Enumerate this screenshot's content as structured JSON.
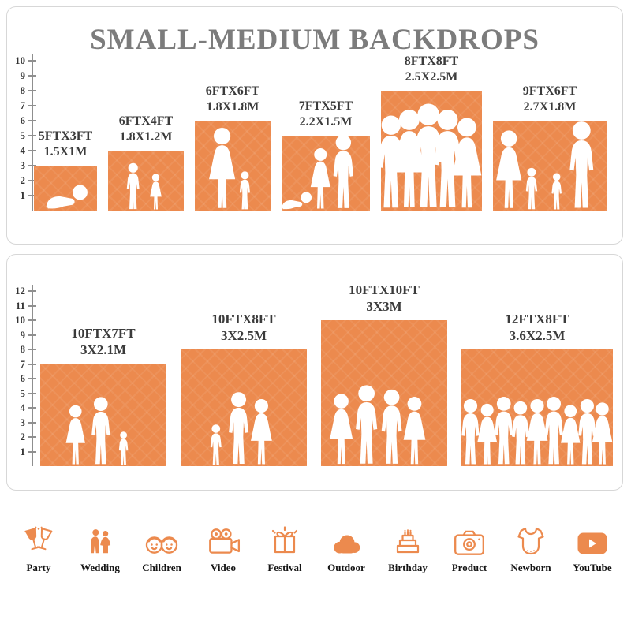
{
  "title": "SMALL-MEDIUM BACKDROPS",
  "accent_color": "#EC8A4E",
  "chart_data": [
    {
      "type": "bar",
      "name": "small-medium-backdrops",
      "unit": "ft",
      "ruler_max": 10,
      "bars": [
        {
          "label1": "5FTX3FT",
          "label2": "1.5X1M",
          "width_ft": 5,
          "height_ft": 3,
          "figures": "crawling-baby"
        },
        {
          "label1": "6FTX4FT",
          "label2": "1.8X1.2M",
          "width_ft": 6,
          "height_ft": 4,
          "figures": "two-children"
        },
        {
          "label1": "6FTX6FT",
          "label2": "1.8X1.8M",
          "width_ft": 6,
          "height_ft": 6,
          "figures": "mother-and-child"
        },
        {
          "label1": "7FTX5FT",
          "label2": "2.2X1.5M",
          "width_ft": 7,
          "height_ft": 5,
          "figures": "family-of-three"
        },
        {
          "label1": "8FTX8FT",
          "label2": "2.5X2.5M",
          "width_ft": 8,
          "height_ft": 8,
          "figures": "group-of-five"
        },
        {
          "label1": "9FTX6FT",
          "label2": "2.7X1.8M",
          "width_ft": 9,
          "height_ft": 6,
          "figures": "family-of-four"
        }
      ]
    },
    {
      "type": "bar",
      "name": "large-backdrops",
      "unit": "ft",
      "ruler_max": 12,
      "bars": [
        {
          "label1": "10FTX7FT",
          "label2": "3X2.1M",
          "width_ft": 10,
          "height_ft": 7,
          "figures": "family-of-three"
        },
        {
          "label1": "10FTX8FT",
          "label2": "3X2.5M",
          "width_ft": 10,
          "height_ft": 8,
          "figures": "parents-with-child"
        },
        {
          "label1": "10FTX10FT",
          "label2": "3X3M",
          "width_ft": 10,
          "height_ft": 10,
          "figures": "group-of-four"
        },
        {
          "label1": "12FTX8FT",
          "label2": "3.6X2.5M",
          "width_ft": 12,
          "height_ft": 8,
          "figures": "group-of-nine"
        }
      ]
    }
  ],
  "categories": [
    {
      "label": "Party",
      "icon": "party-glasses-icon"
    },
    {
      "label": "Wedding",
      "icon": "wedding-couple-icon"
    },
    {
      "label": "Children",
      "icon": "children-faces-icon"
    },
    {
      "label": "Video",
      "icon": "video-camera-icon"
    },
    {
      "label": "Festival",
      "icon": "festival-gift-icon"
    },
    {
      "label": "Outdoor",
      "icon": "outdoor-cloud-icon"
    },
    {
      "label": "Birthday",
      "icon": "birthday-cake-icon"
    },
    {
      "label": "Product",
      "icon": "product-camera-icon"
    },
    {
      "label": "Newborn",
      "icon": "newborn-onesie-icon"
    },
    {
      "label": "YouTube",
      "icon": "youtube-play-icon"
    }
  ]
}
